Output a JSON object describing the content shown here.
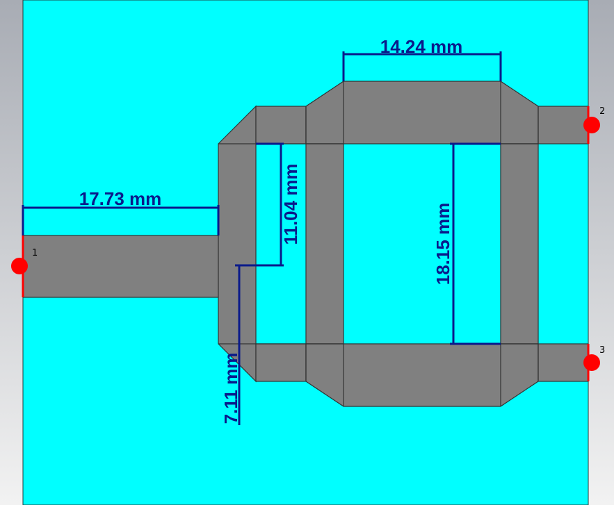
{
  "colors": {
    "substrate": "#00ffff",
    "metal": "#808080",
    "edge": "#333333",
    "dimension": "#0a1a8a",
    "port": "#ff0000",
    "background_top": "#a8acb4",
    "background_bottom": "#f2f2f2"
  },
  "dimensions": {
    "feed_line_length": "17.73 mm",
    "top_branch_width": "14.24 mm",
    "stub_length": "11.04 mm",
    "inner_height": "18.15 mm",
    "lower_stub_length": "7.11 mm"
  },
  "ports": {
    "port1": "1",
    "port2": "2",
    "port3": "3"
  }
}
